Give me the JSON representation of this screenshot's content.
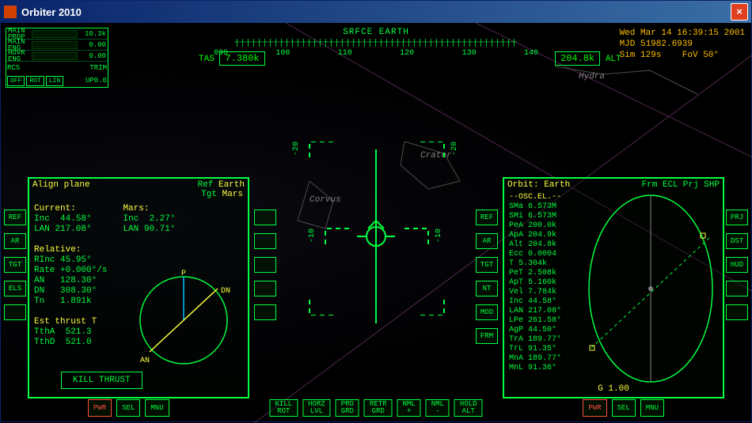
{
  "window": {
    "title": "Orbiter 2010"
  },
  "clock": {
    "date": "Wed Mar 14 16:39:15 2001",
    "mjd": "MJD 51982.6939",
    "sim": "Sim  129s",
    "fov": "FoV  50°"
  },
  "heading": {
    "title": "SRFCE  EARTH",
    "tas_label": "TAS",
    "tas": "7.380k",
    "alt_label": "ALT",
    "alt": "204.8k",
    "ticks": [
      "090",
      "100",
      "110",
      "120",
      "130",
      "140"
    ]
  },
  "engine": {
    "rows": [
      {
        "label": "MAIN\nPROP",
        "value": "10.3k"
      },
      {
        "label": "MAIN\nENG",
        "value": "0.00"
      },
      {
        "label": "HOVR\nENG",
        "value": "0.00"
      }
    ],
    "rcs_label": "RCS",
    "rcs_modes": [
      "OFF",
      "ROT",
      "LIN"
    ],
    "trim_label": "TRIM",
    "trim_val": "UP0.0"
  },
  "constellations": {
    "hydra": "Hydra",
    "crater": "Crater",
    "corvus": "Corvus"
  },
  "mfd_left": {
    "title": "Align plane",
    "ref_label": "Ref",
    "ref": "Earth",
    "tgt_label": "Tgt",
    "tgt": "Mars",
    "current_hdr": "Current:",
    "current": {
      "Inc": "44.58°",
      "LAN": "217.08°"
    },
    "target_hdr": "Mars:",
    "target": {
      "Inc": "2.27°",
      "LAN": "90.71°"
    },
    "relative_hdr": "Relative:",
    "relative": {
      "RInc": "45.95°",
      "Rate": "+0.000°/s",
      "AN": "128.30°",
      "DN": "308.30°",
      "Tn": "1.891k"
    },
    "thrust_hdr": "Est thrust T",
    "thrust": {
      "TthA": "521.3",
      "TthD": "521.0"
    },
    "kill": "KILL THRUST",
    "circle_labels": {
      "P": "P",
      "AN": "AN",
      "DN": "DN"
    },
    "side_left": [
      "REF",
      "AR",
      "TGT",
      "ELS",
      ""
    ],
    "bottom": [
      "PWR",
      "SEL",
      "MNU"
    ]
  },
  "mfd_right": {
    "title": "Orbit:  Earth",
    "frm": "Frm ECL",
    "prj": "Prj SHP",
    "osc_hdr": "--OSC.EL.--",
    "elements": [
      [
        "SMa",
        "6.573M"
      ],
      [
        "SMi",
        "6.573M"
      ],
      [
        "PeA",
        "200.0k"
      ],
      [
        "ApA",
        "204.9k"
      ],
      [
        "Alt",
        "204.8k"
      ],
      [
        "Ecc",
        "0.0004"
      ],
      [
        "T",
        "5.304k"
      ],
      [
        "PeT",
        "2.508k"
      ],
      [
        "ApT",
        "5.160k"
      ],
      [
        "Vel",
        "7.784k"
      ],
      [
        "Inc",
        "44.58°"
      ],
      [
        "LAN",
        "217.08°"
      ],
      [
        "LPe",
        "261.58°"
      ],
      [
        "AgP",
        "44.50°"
      ],
      [
        "TrA",
        "189.77°"
      ],
      [
        "TrL",
        "91.35°"
      ],
      [
        "MnA",
        "189.77°"
      ],
      [
        "MnL",
        "91.36°"
      ]
    ],
    "g_label": "G 1.00",
    "side_right": [
      "PRJ",
      "DST",
      "HUD",
      "",
      ""
    ],
    "side_in": [
      "REF",
      "AR",
      "TGT",
      "NT",
      "MOD",
      "FRM"
    ],
    "bottom": [
      "PWR",
      "SEL",
      "MNU"
    ]
  },
  "autopilot_btns": [
    "KILL\nROT",
    "HORZ\nLVL",
    "PRO\nGRD",
    "RETR\nGRD",
    "NML\n+",
    "NML\n-",
    "HOLD\nALT"
  ],
  "colors": {
    "hud": "#00ff40",
    "warn": "#ffbf00",
    "accent": "#ffff40",
    "magenta": "#c060c0",
    "titlebar": "#3a6ea5"
  }
}
